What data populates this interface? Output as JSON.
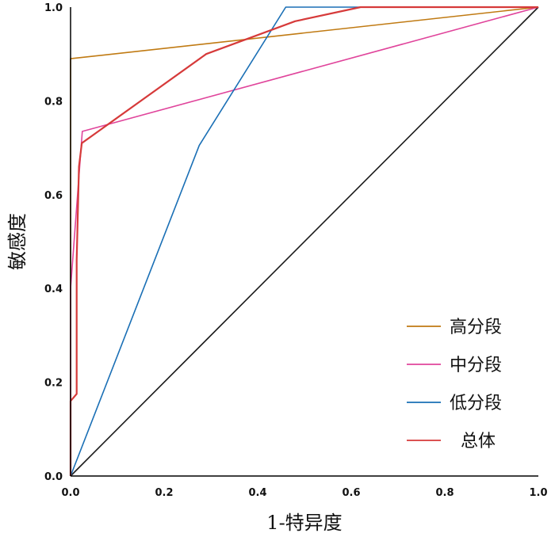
{
  "chart_data": {
    "type": "line",
    "xlabel": "1-特异度",
    "ylabel": "敏感度",
    "xlim": [
      0,
      1
    ],
    "ylim": [
      0,
      1
    ],
    "x_ticks": [
      "0.0",
      "0.2",
      "0.4",
      "0.6",
      "0.8",
      "1.0"
    ],
    "y_ticks": [
      "0.0",
      "0.2",
      "0.4",
      "0.6",
      "0.8",
      "1.0"
    ],
    "grid": false,
    "legend_position": "bottom-right",
    "reference_line": {
      "x": [
        0,
        1
      ],
      "y": [
        0,
        1
      ],
      "color": "#1a1a1a"
    },
    "series": [
      {
        "name": "高分段",
        "color": "#c07a12",
        "x": [
          0.0,
          0.0,
          1.0
        ],
        "y": [
          0.0,
          0.89,
          1.0
        ]
      },
      {
        "name": "中分段",
        "color": "#e0449b",
        "x": [
          0.0,
          0.0,
          0.025,
          1.0
        ],
        "y": [
          0.0,
          0.4,
          0.735,
          1.0
        ]
      },
      {
        "name": "低分段",
        "color": "#1a6fb5",
        "x": [
          0.0,
          0.275,
          0.46,
          0.6,
          1.0
        ],
        "y": [
          0.0,
          0.705,
          1.0,
          1.0,
          1.0
        ]
      },
      {
        "name": "总体",
        "color": "#d63a3a",
        "x": [
          0.0,
          0.0,
          0.013,
          0.013,
          0.018,
          0.024,
          0.29,
          0.48,
          0.62,
          1.0
        ],
        "y": [
          0.0,
          0.16,
          0.175,
          0.46,
          0.66,
          0.71,
          0.9,
          0.97,
          1.0,
          1.0
        ]
      }
    ]
  }
}
